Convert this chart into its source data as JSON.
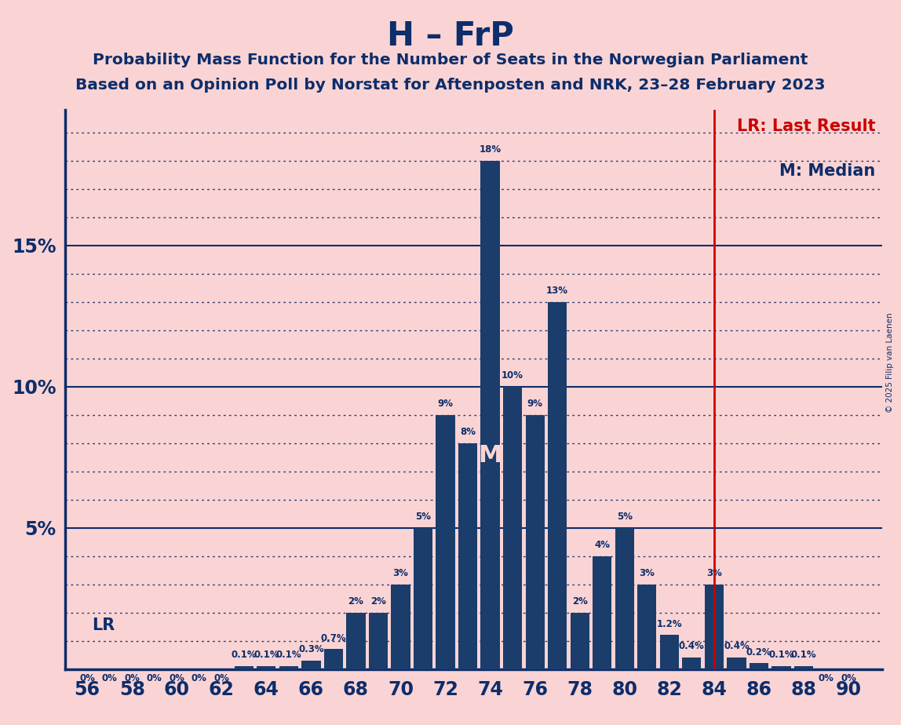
{
  "title": "H – FrP",
  "subtitle1": "Probability Mass Function for the Number of Seats in the Norwegian Parliament",
  "subtitle2": "Based on an Opinion Poll by Norstat for Aftenposten and NRK, 23–28 February 2023",
  "copyright": "© 2025 Filip van Laenen",
  "background_color": "#FAD4D4",
  "bar_color": "#1a3d6b",
  "title_color": "#0d2d6b",
  "seats": [
    56,
    57,
    58,
    59,
    60,
    61,
    62,
    63,
    64,
    65,
    66,
    67,
    68,
    69,
    70,
    71,
    72,
    73,
    74,
    75,
    76,
    77,
    78,
    79,
    80,
    81,
    82,
    83,
    84,
    85,
    86,
    87,
    88,
    89,
    90
  ],
  "probabilities": [
    0.0,
    0.0,
    0.0,
    0.0,
    0.0,
    0.0,
    0.0,
    0.1,
    0.1,
    0.1,
    0.3,
    0.7,
    2.0,
    2.0,
    3.0,
    5.0,
    9.0,
    8.0,
    18.0,
    10.0,
    9.0,
    13.0,
    2.0,
    4.0,
    5.0,
    3.0,
    1.2,
    0.4,
    3.0,
    0.4,
    0.2,
    0.1,
    0.1,
    0.0,
    0.0
  ],
  "bar_labels": [
    "0%",
    "0%",
    "0%",
    "0%",
    "0%",
    "0%",
    "0%",
    "0.1%",
    "0.1%",
    "0.1%",
    "0.3%",
    "0.7%",
    "2%",
    "2%",
    "3%",
    "5%",
    "9%",
    "8%",
    "18%",
    "10%",
    "9%",
    "13%",
    "2%",
    "4%",
    "5%",
    "3%",
    "1.2%",
    "0.4%",
    "3%",
    "0.4%",
    "0.2%",
    "0.1%",
    "0.1%",
    "0%",
    "0%"
  ],
  "last_result_seat": 84,
  "median_seat": 74,
  "xlim_min": 55.0,
  "xlim_max": 91.5,
  "ylim_min": 0,
  "ylim_max": 19.8,
  "major_yticks": [
    5,
    10,
    15
  ],
  "minor_yticks": [
    1,
    2,
    3,
    4,
    6,
    7,
    8,
    9,
    11,
    12,
    13,
    14,
    16,
    17,
    18,
    19
  ],
  "ytick_labels_map": {
    "5": "5%",
    "10": "10%",
    "15": "15%"
  },
  "xtick_positions": [
    56,
    58,
    60,
    62,
    64,
    66,
    68,
    70,
    72,
    74,
    76,
    78,
    80,
    82,
    84,
    86,
    88,
    90
  ],
  "legend_lr_text": "LR: Last Result",
  "legend_m_text": "M: Median",
  "grid_color": "#0d2d6b",
  "solid_grid_color": "#0d2d6b",
  "lr_line_color": "#cc0000",
  "lr_label_level": 1.55,
  "median_label_color": "#FAD4D4",
  "axis_line_color": "#0d2d6b",
  "label_fontsize": 8.5,
  "axis_tick_fontsize": 17,
  "title_fontsize": 30,
  "subtitle_fontsize": 14.5,
  "legend_fontsize": 15
}
